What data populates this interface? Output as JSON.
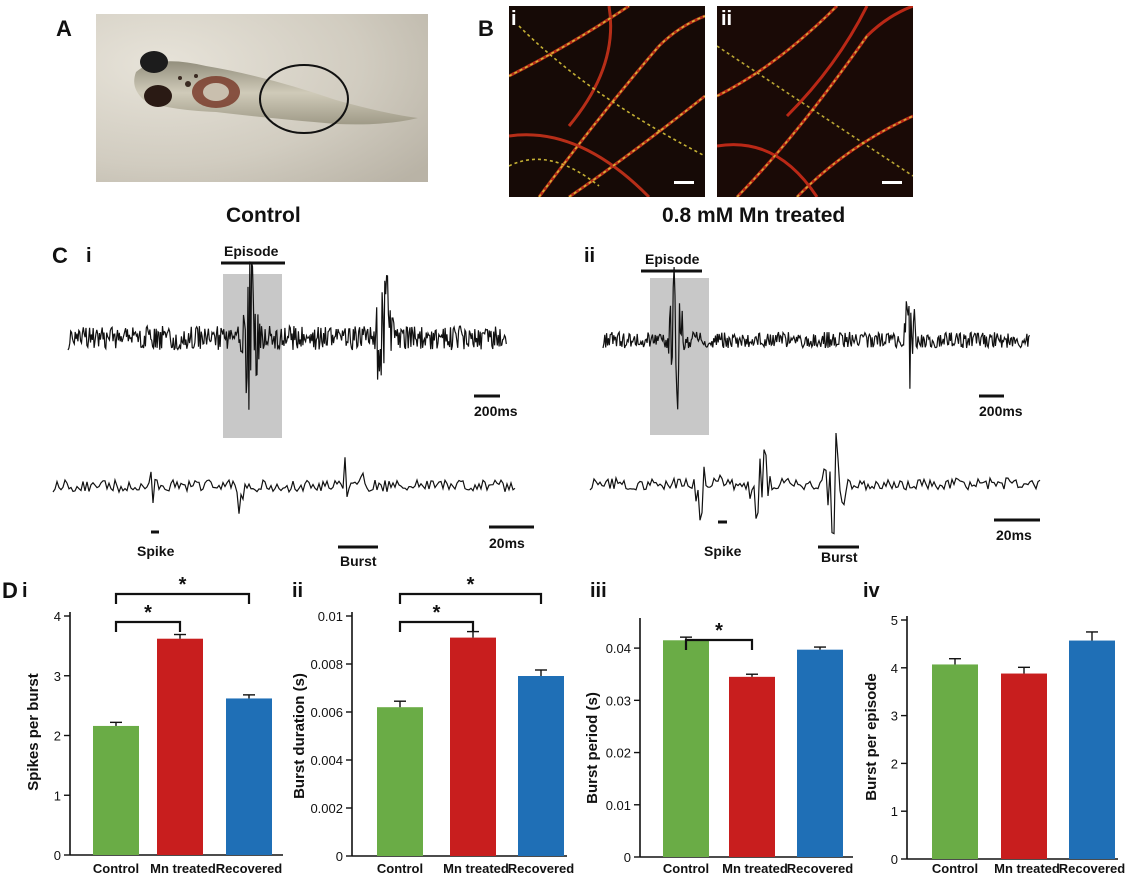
{
  "labels": {
    "A": "A",
    "B": "B",
    "Bi": "i",
    "Bii": "ii",
    "control": "Control",
    "mn": "0.8 mM Mn treated",
    "C": "C",
    "Ci": "i",
    "Cii": "ii",
    "episode": "Episode",
    "bar200": "200ms",
    "bar20": "20ms",
    "spike": "Spike",
    "burst": "Burst",
    "D": "D",
    "Di": "i",
    "Dii": "ii",
    "Diii": "iii",
    "Div": "iv"
  },
  "colors": {
    "control": "#6aac46",
    "mn": "#c81e1e",
    "recovered": "#1f6fb6"
  },
  "chart_data": [
    {
      "type": "bar",
      "categories": [
        "Control",
        "Mn treated",
        "Recovered"
      ],
      "values": [
        2.16,
        3.62,
        2.62
      ],
      "errors": [
        0.06,
        0.07,
        0.06
      ],
      "ylabel": "Spikes per burst",
      "ylim": [
        0,
        4
      ],
      "ticks": [
        "0",
        "1",
        "2",
        "3",
        "4"
      ],
      "sig": [
        {
          "from": 0,
          "to": 1,
          "level": 1,
          "label": "*"
        },
        {
          "from": 0,
          "to": 2,
          "level": 2,
          "label": "*"
        }
      ]
    },
    {
      "type": "bar",
      "categories": [
        "Control",
        "Mn treated",
        "Recovered"
      ],
      "values": [
        0.0062,
        0.0091,
        0.0075
      ],
      "errors": [
        0.00025,
        0.00025,
        0.00025
      ],
      "ylabel": "Burst duration (s)",
      "ylim": [
        0,
        0.01
      ],
      "ticks": [
        "0",
        "0.002",
        "0.004",
        "0.006",
        "0.008",
        "0.01"
      ],
      "sig": [
        {
          "from": 0,
          "to": 1,
          "level": 1,
          "label": "*"
        },
        {
          "from": 0,
          "to": 2,
          "level": 2,
          "label": "*"
        }
      ]
    },
    {
      "type": "bar",
      "categories": [
        "Control",
        "Mn treated",
        "Recovered"
      ],
      "values": [
        0.0415,
        0.0345,
        0.0397
      ],
      "errors": [
        0.0006,
        0.0005,
        0.0005
      ],
      "ylabel": "Burst period (s)",
      "ylim": [
        0,
        0.045
      ],
      "ticks": [
        "0",
        "0.01",
        "0.02",
        "0.03",
        "0.04"
      ],
      "sig": [
        {
          "from": 0,
          "to": 1,
          "level": 1,
          "label": "*"
        }
      ]
    },
    {
      "type": "bar",
      "categories": [
        "Control",
        "Mn treated",
        "Recovered"
      ],
      "values": [
        4.07,
        3.88,
        4.57
      ],
      "errors": [
        0.12,
        0.13,
        0.18
      ],
      "ylabel": "Burst per episode",
      "ylim": [
        0,
        5
      ],
      "ticks": [
        "0",
        "1",
        "2",
        "3",
        "4",
        "5"
      ],
      "sig": []
    }
  ]
}
